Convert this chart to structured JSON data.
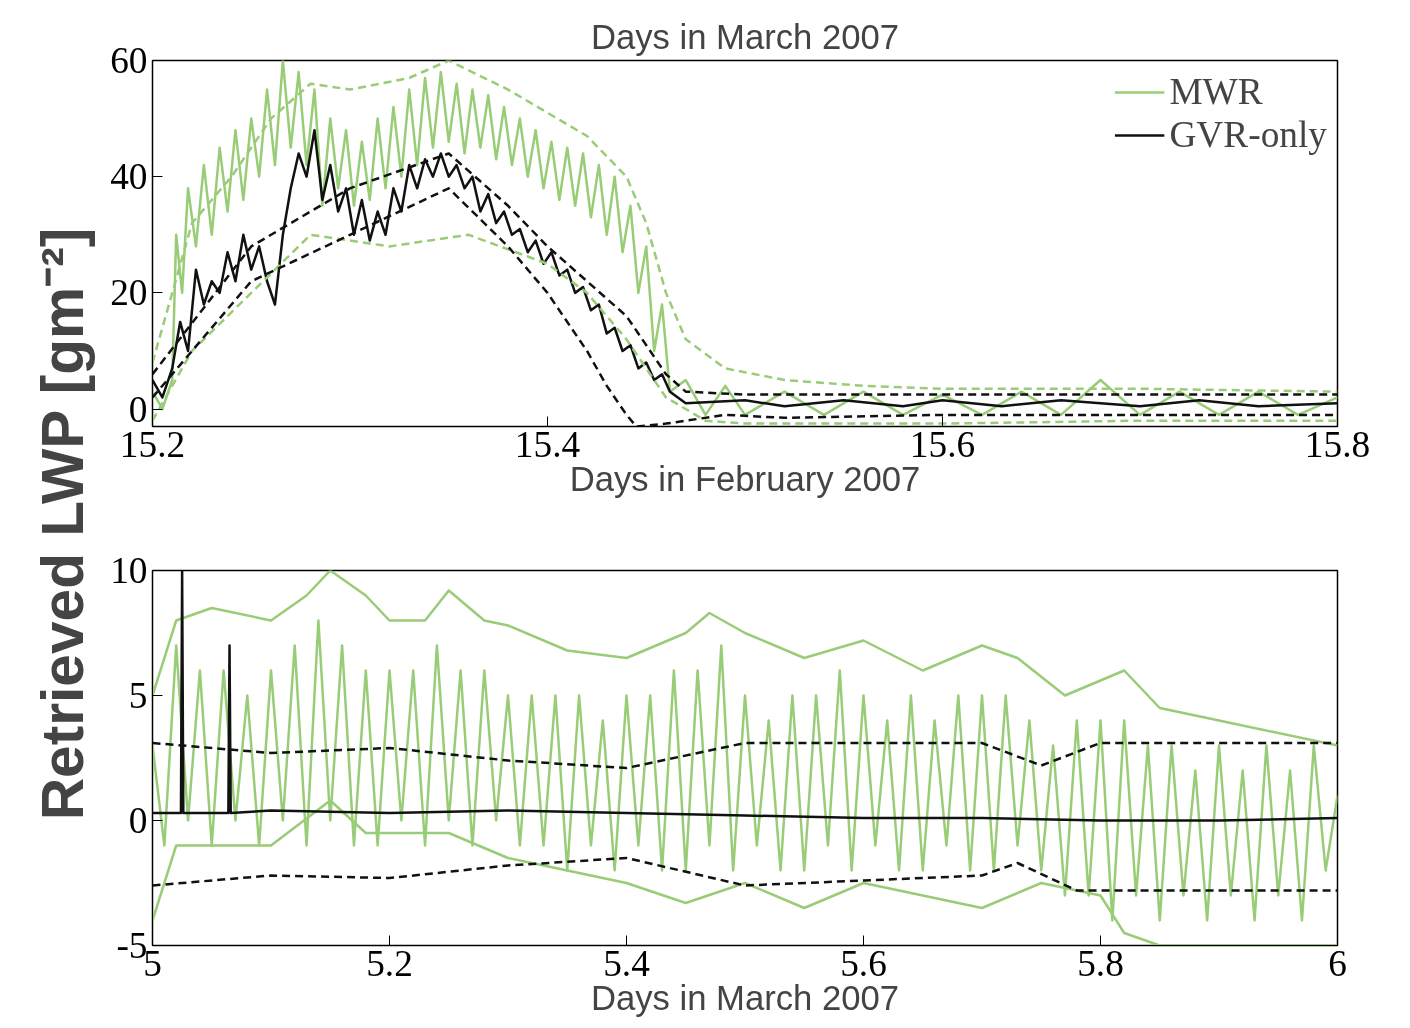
{
  "chart_data": [
    {
      "type": "line",
      "title": "Days in March 2007",
      "xlabel": "Days in February 2007",
      "ylabel": "Retrieved LWP [gm⁻²]",
      "xlim": [
        15.2,
        15.8
      ],
      "ylim": [
        -3,
        60
      ],
      "xticks": [
        15.2,
        15.4,
        15.6,
        15.8
      ],
      "yticks": [
        0,
        20,
        40,
        60
      ],
      "grid": false,
      "legend": "top right",
      "series": [
        {
          "name": "MWR",
          "color": "#99cc77",
          "line_style": "solid",
          "x": [
            15.2,
            15.205,
            15.21,
            15.212,
            15.215,
            15.218,
            15.222,
            15.226,
            15.23,
            15.234,
            15.238,
            15.242,
            15.246,
            15.25,
            15.254,
            15.258,
            15.262,
            15.266,
            15.27,
            15.274,
            15.278,
            15.282,
            15.286,
            15.29,
            15.294,
            15.298,
            15.302,
            15.306,
            15.31,
            15.314,
            15.318,
            15.322,
            15.326,
            15.33,
            15.334,
            15.338,
            15.342,
            15.346,
            15.35,
            15.354,
            15.358,
            15.362,
            15.366,
            15.37,
            15.374,
            15.378,
            15.382,
            15.386,
            15.39,
            15.394,
            15.398,
            15.402,
            15.406,
            15.41,
            15.414,
            15.418,
            15.422,
            15.426,
            15.43,
            15.434,
            15.438,
            15.442,
            15.446,
            15.45,
            15.454,
            15.458,
            15.462,
            15.47,
            15.48,
            15.49,
            15.5,
            15.52,
            15.54,
            15.56,
            15.58,
            15.6,
            15.62,
            15.64,
            15.66,
            15.68,
            15.7,
            15.72,
            15.74,
            15.76,
            15.78,
            15.8
          ],
          "values": [
            3,
            0,
            5,
            30,
            20,
            38,
            28,
            42,
            30,
            45,
            34,
            48,
            36,
            50,
            40,
            55,
            42,
            60,
            45,
            58,
            42,
            55,
            35,
            50,
            38,
            48,
            35,
            46,
            36,
            50,
            38,
            52,
            40,
            55,
            42,
            57,
            45,
            58,
            46,
            56,
            44,
            55,
            45,
            54,
            43,
            52,
            42,
            50,
            40,
            48,
            38,
            46,
            36,
            45,
            35,
            44,
            33,
            42,
            30,
            40,
            27,
            35,
            20,
            28,
            10,
            18,
            3,
            5,
            -1,
            4,
            -1,
            3,
            -1,
            3,
            -1,
            2.5,
            -1,
            3,
            -1,
            5,
            -1,
            3,
            -1,
            3,
            -1,
            2
          ]
        },
        {
          "name": "GVR-only",
          "color": "#111111",
          "line_style": "solid",
          "x": [
            15.2,
            15.205,
            15.21,
            15.214,
            15.218,
            15.222,
            15.226,
            15.23,
            15.234,
            15.238,
            15.242,
            15.246,
            15.25,
            15.254,
            15.258,
            15.262,
            15.266,
            15.27,
            15.274,
            15.278,
            15.282,
            15.286,
            15.29,
            15.294,
            15.298,
            15.302,
            15.306,
            15.31,
            15.314,
            15.318,
            15.322,
            15.326,
            15.33,
            15.334,
            15.338,
            15.342,
            15.346,
            15.35,
            15.354,
            15.358,
            15.362,
            15.366,
            15.37,
            15.374,
            15.378,
            15.382,
            15.386,
            15.39,
            15.394,
            15.398,
            15.402,
            15.406,
            15.41,
            15.414,
            15.418,
            15.422,
            15.426,
            15.43,
            15.434,
            15.438,
            15.442,
            15.446,
            15.45,
            15.454,
            15.458,
            15.462,
            15.466,
            15.47,
            15.5,
            15.52,
            15.55,
            15.58,
            15.6,
            15.63,
            15.66,
            15.7,
            15.73,
            15.76,
            15.8
          ],
          "values": [
            5,
            2,
            7,
            15,
            10,
            24,
            18,
            22,
            20,
            27,
            22,
            30,
            24,
            28,
            22,
            18,
            30,
            38,
            44,
            40,
            48,
            36,
            42,
            34,
            38,
            30,
            36,
            29,
            34,
            30,
            38,
            34,
            42,
            38,
            43,
            40,
            44,
            40,
            42,
            38,
            40,
            34,
            37,
            32,
            34,
            30,
            31,
            27,
            29,
            25,
            27,
            23,
            24,
            20,
            21,
            17,
            18,
            13,
            14,
            10,
            11,
            7,
            8,
            5,
            6,
            3,
            2,
            1,
            1.5,
            0.5,
            1.5,
            0.5,
            1.5,
            0.5,
            1.5,
            0.5,
            1.5,
            0.5,
            1
          ]
        },
        {
          "color": "#99cc77",
          "line_style": "dashed",
          "x": [
            15.2,
            15.21,
            15.22,
            15.24,
            15.26,
            15.28,
            15.3,
            15.33,
            15.35,
            15.38,
            15.4,
            15.42,
            15.44,
            15.45,
            15.46,
            15.47,
            15.49,
            15.52,
            15.56,
            15.6,
            15.7,
            15.8
          ],
          "values": [
            8,
            20,
            32,
            40,
            50,
            56,
            55,
            57,
            60,
            55,
            51,
            47,
            40,
            32,
            20,
            12,
            7,
            5,
            4,
            3.5,
            3.5,
            3
          ]
        },
        {
          "color": "#99cc77",
          "line_style": "dashed",
          "x": [
            15.2,
            15.22,
            15.25,
            15.28,
            15.32,
            15.36,
            15.4,
            15.42,
            15.44,
            15.46,
            15.48,
            15.5,
            15.6,
            15.7,
            15.8
          ],
          "values": [
            -2,
            10,
            20,
            30,
            28,
            30,
            25,
            20,
            12,
            2,
            -2,
            -2.5,
            -2.5,
            -2,
            -2
          ]
        },
        {
          "color": "#111111",
          "line_style": "dashed",
          "x": [
            15.2,
            15.25,
            15.3,
            15.35,
            15.38,
            15.4,
            15.42,
            15.44,
            15.46,
            15.47,
            15.5,
            15.6,
            15.7,
            15.8
          ],
          "values": [
            6,
            28,
            38,
            44,
            35,
            28,
            22,
            16,
            6,
            3,
            2.5,
            2.5,
            2.5,
            2.5
          ]
        },
        {
          "color": "#111111",
          "line_style": "dashed",
          "x": [
            15.2,
            15.25,
            15.3,
            15.35,
            15.38,
            15.4,
            15.42,
            15.43,
            15.44,
            15.445,
            15.46,
            15.49,
            15.52,
            15.6,
            15.7,
            15.8
          ],
          "values": [
            2,
            22,
            30,
            38,
            28,
            20,
            10,
            4,
            -1,
            -3,
            -2.5,
            -1,
            -1.5,
            -1,
            -1,
            -1
          ]
        }
      ]
    },
    {
      "type": "line",
      "xlabel": "Days in March 2007",
      "xlim": [
        5,
        6
      ],
      "ylim": [
        -5,
        10
      ],
      "xticks": [
        5,
        5.2,
        5.4,
        5.6,
        5.8,
        6
      ],
      "yticks": [
        -5,
        0,
        5,
        10
      ],
      "grid": false,
      "series": [
        {
          "color": "#99cc77",
          "line_style": "solid",
          "x": [
            5.0,
            5.01,
            5.02,
            5.03,
            5.04,
            5.05,
            5.06,
            5.07,
            5.08,
            5.09,
            5.1,
            5.11,
            5.12,
            5.13,
            5.14,
            5.15,
            5.16,
            5.17,
            5.18,
            5.19,
            5.2,
            5.21,
            5.22,
            5.23,
            5.24,
            5.25,
            5.26,
            5.27,
            5.28,
            5.29,
            5.3,
            5.31,
            5.32,
            5.33,
            5.34,
            5.35,
            5.36,
            5.37,
            5.38,
            5.39,
            5.4,
            5.41,
            5.42,
            5.43,
            5.44,
            5.45,
            5.46,
            5.47,
            5.48,
            5.49,
            5.5,
            5.51,
            5.52,
            5.53,
            5.54,
            5.55,
            5.56,
            5.57,
            5.58,
            5.59,
            5.6,
            5.61,
            5.62,
            5.63,
            5.64,
            5.65,
            5.66,
            5.67,
            5.68,
            5.69,
            5.7,
            5.71,
            5.72,
            5.73,
            5.74,
            5.75,
            5.76,
            5.77,
            5.78,
            5.79,
            5.8,
            5.81,
            5.82,
            5.83,
            5.84,
            5.85,
            5.86,
            5.87,
            5.88,
            5.89,
            5.9,
            5.91,
            5.92,
            5.93,
            5.94,
            5.95,
            5.96,
            5.97,
            5.98,
            5.99,
            6.0
          ],
          "values": [
            3,
            -1,
            7,
            0,
            6,
            -1,
            6,
            0,
            5,
            -1,
            6,
            0,
            7,
            -1,
            8,
            0,
            7,
            -1,
            6,
            -1,
            6,
            0,
            6,
            -1,
            7,
            0,
            6,
            -1,
            6,
            0,
            5,
            -1,
            5,
            -1,
            5,
            -2,
            5,
            -1,
            4,
            -2,
            5,
            -1,
            5,
            -2,
            6,
            -2,
            6,
            -1,
            7,
            -2,
            5,
            -1,
            4,
            -2,
            5,
            -2,
            5,
            -1,
            6,
            -2,
            5,
            -1,
            4,
            -2,
            5,
            -2,
            4,
            -1,
            5,
            -2,
            5,
            -2,
            5,
            -1,
            4,
            -2,
            3,
            -3,
            4,
            -3,
            4,
            -4,
            4,
            -3,
            3,
            -4,
            3,
            -3,
            2,
            -4,
            3,
            -3,
            2,
            -4,
            3,
            -3,
            2,
            -4,
            3,
            -2,
            1
          ]
        },
        {
          "color": "#99cc77",
          "line_style": "solid",
          "x": [
            5.0,
            5.02,
            5.05,
            5.1,
            5.13,
            5.15,
            5.18,
            5.2,
            5.23,
            5.25,
            5.28,
            5.3,
            5.35,
            5.4,
            5.45,
            5.47,
            5.5,
            5.55,
            5.6,
            5.65,
            5.7,
            5.73,
            5.77,
            5.82,
            5.85,
            5.9,
            6.0
          ],
          "values": [
            5,
            8,
            8.5,
            8,
            9,
            10,
            9,
            8,
            8,
            9.2,
            8,
            7.8,
            6.8,
            6.5,
            7.5,
            8.3,
            7.5,
            6.5,
            7.2,
            6,
            7,
            6.5,
            5,
            6,
            4.5,
            4,
            3
          ]
        },
        {
          "color": "#99cc77",
          "line_style": "solid",
          "x": [
            5.0,
            5.02,
            5.1,
            5.15,
            5.18,
            5.22,
            5.25,
            5.3,
            5.35,
            5.4,
            5.45,
            5.5,
            5.55,
            5.6,
            5.65,
            5.7,
            5.75,
            5.8,
            5.82,
            5.85,
            5.9,
            6.0
          ],
          "values": [
            -4,
            -1,
            -1,
            0.8,
            -0.5,
            -0.5,
            -0.5,
            -1.5,
            -2,
            -2.5,
            -3.3,
            -2.5,
            -3.5,
            -2.5,
            -3,
            -3.5,
            -2.5,
            -3,
            -4.5,
            -5,
            -5,
            -5
          ]
        },
        {
          "color": "#111111",
          "line_style": "dashed",
          "x": [
            5.0,
            5.1,
            5.2,
            5.3,
            5.4,
            5.5,
            5.7,
            5.75,
            5.8,
            6.0
          ],
          "values": [
            3.1,
            2.7,
            2.9,
            2.4,
            2.1,
            3.1,
            3.1,
            2.2,
            3.1,
            3.1
          ]
        },
        {
          "color": "#111111",
          "line_style": "dashed",
          "x": [
            5.0,
            5.1,
            5.2,
            5.3,
            5.4,
            5.5,
            5.7,
            5.73,
            5.78,
            6.0
          ],
          "values": [
            -2.6,
            -2.2,
            -2.3,
            -1.8,
            -1.5,
            -2.6,
            -2.2,
            -1.7,
            -2.8,
            -2.8
          ]
        },
        {
          "color": "#111111",
          "line_style": "solid",
          "x": [
            5.0,
            5.024,
            5.025,
            5.026,
            5.064,
            5.065,
            5.066,
            5.1,
            5.2,
            5.3,
            5.4,
            5.5,
            5.6,
            5.7,
            5.8,
            5.9,
            6.0
          ],
          "values": [
            0.3,
            0.3,
            10,
            0.3,
            0.3,
            7,
            0.3,
            0.4,
            0.3,
            0.4,
            0.3,
            0.2,
            0.1,
            0.1,
            0.0,
            0.0,
            0.1
          ]
        }
      ]
    }
  ]
}
